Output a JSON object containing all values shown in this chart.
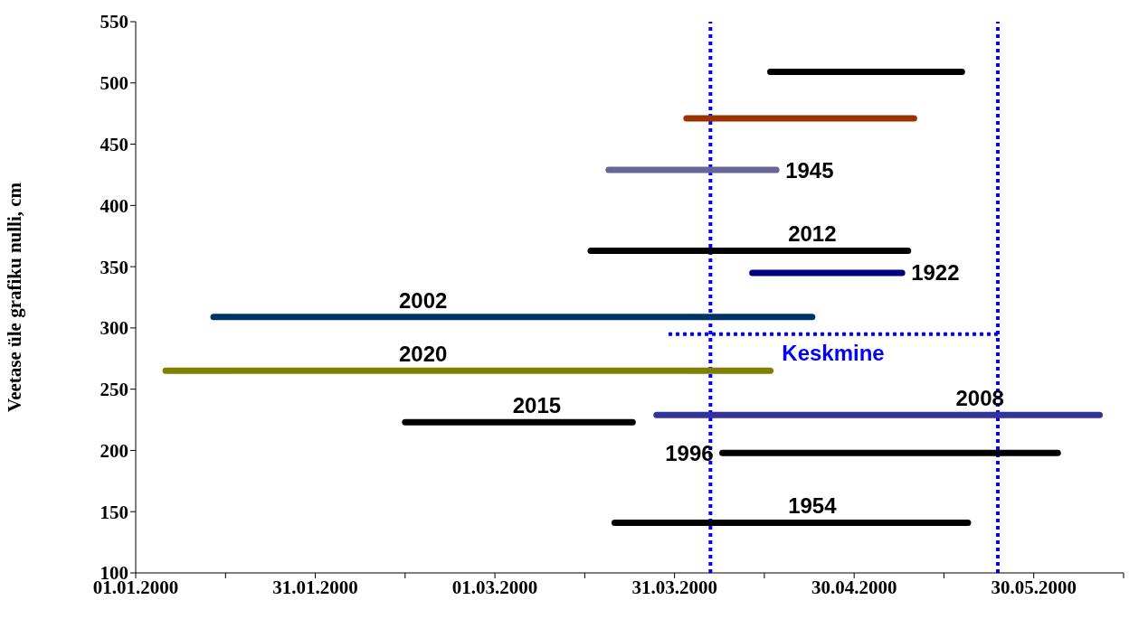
{
  "chart_data": {
    "type": "line",
    "ylabel": "Veetase üle grafiku nulli, cm",
    "xlim": [
      "2000-01-01",
      "2000-06-14"
    ],
    "xticks": [
      {
        "value": "2000-01-01",
        "label": "01.01.2000"
      },
      {
        "value": "2000-01-16",
        "label": null
      },
      {
        "value": "2000-01-31",
        "label": "31.01.2000"
      },
      {
        "value": "2000-02-15",
        "label": null
      },
      {
        "value": "2000-03-01",
        "label": "01.03.2000"
      },
      {
        "value": "2000-03-16",
        "label": null
      },
      {
        "value": "2000-03-31",
        "label": "31.03.2000"
      },
      {
        "value": "2000-04-15",
        "label": null
      },
      {
        "value": "2000-04-30",
        "label": "30.04.2000"
      },
      {
        "value": "2000-05-15",
        "label": null
      },
      {
        "value": "2000-05-30",
        "label": "30.05.2000"
      },
      {
        "value": "2000-06-14",
        "label": null
      }
    ],
    "ylim": [
      100,
      550
    ],
    "yticks": [
      100,
      150,
      200,
      250,
      300,
      350,
      400,
      450,
      500,
      550
    ],
    "series": [
      {
        "color": "#000000",
        "x": [
          "2000-04-16",
          "2000-05-18"
        ],
        "values": [
          509,
          509
        ]
      },
      {
        "color": "#993300",
        "x": [
          "2000-04-02",
          "2000-05-10"
        ],
        "values": [
          471,
          471
        ]
      },
      {
        "color": "#666699",
        "x": [
          "2000-03-20",
          "2000-04-17"
        ],
        "values": [
          429,
          429
        ]
      },
      {
        "color": "#000000",
        "x": [
          "2000-03-17",
          "2000-05-09"
        ],
        "values": [
          363,
          363
        ]
      },
      {
        "color": "#000080",
        "x": [
          "2000-04-13",
          "2000-05-08"
        ],
        "values": [
          345,
          345
        ]
      },
      {
        "color": "#003366",
        "x": [
          "2000-01-14",
          "2000-04-23"
        ],
        "values": [
          309,
          309
        ]
      },
      {
        "name": "Keskmine",
        "color": "#0000ff",
        "line_style": "dotted",
        "x": [
          "2000-03-30",
          "2000-05-24"
        ],
        "values": [
          295,
          295
        ]
      },
      {
        "color": "#808000",
        "x": [
          "2000-01-06",
          "2000-04-16"
        ],
        "values": [
          265,
          265
        ]
      },
      {
        "color": "#333399",
        "x": [
          "2000-03-28",
          "2000-06-10"
        ],
        "values": [
          229,
          229
        ]
      },
      {
        "color": "#000000",
        "x": [
          "2000-02-15",
          "2000-03-24"
        ],
        "values": [
          223,
          223
        ]
      },
      {
        "color": "#000000",
        "x": [
          "2000-04-08",
          "2000-06-03"
        ],
        "values": [
          198,
          198
        ]
      },
      {
        "color": "#000000",
        "x": [
          "2000-03-21",
          "2000-05-19"
        ],
        "values": [
          141,
          141
        ]
      }
    ],
    "ref_lines": [
      {
        "axis": "x",
        "value": "2000-04-06",
        "color": "#0000ff",
        "line_style": "dotted"
      },
      {
        "axis": "x",
        "value": "2000-05-24",
        "color": "#0000ff",
        "line_style": "dotted"
      }
    ],
    "annotations": [
      {
        "text": "2002",
        "x": "2000-02-18",
        "y": 309
      },
      {
        "text": "2020",
        "x": "2000-02-18",
        "y": 265
      },
      {
        "text": "2015",
        "x": "2000-03-08",
        "y": 223
      },
      {
        "text": "1996",
        "x": "2000-04-08",
        "y": 198
      },
      {
        "text": "2008",
        "x": "2000-05-21",
        "y": 229
      },
      {
        "text": "1954",
        "x": "2000-04-23",
        "y": 141
      },
      {
        "text": "1945",
        "x": "2000-04-17",
        "y": 429
      },
      {
        "text": "2012",
        "x": "2000-04-23",
        "y": 363
      },
      {
        "text": "1922",
        "x": "2000-05-08",
        "y": 345
      }
    ]
  }
}
